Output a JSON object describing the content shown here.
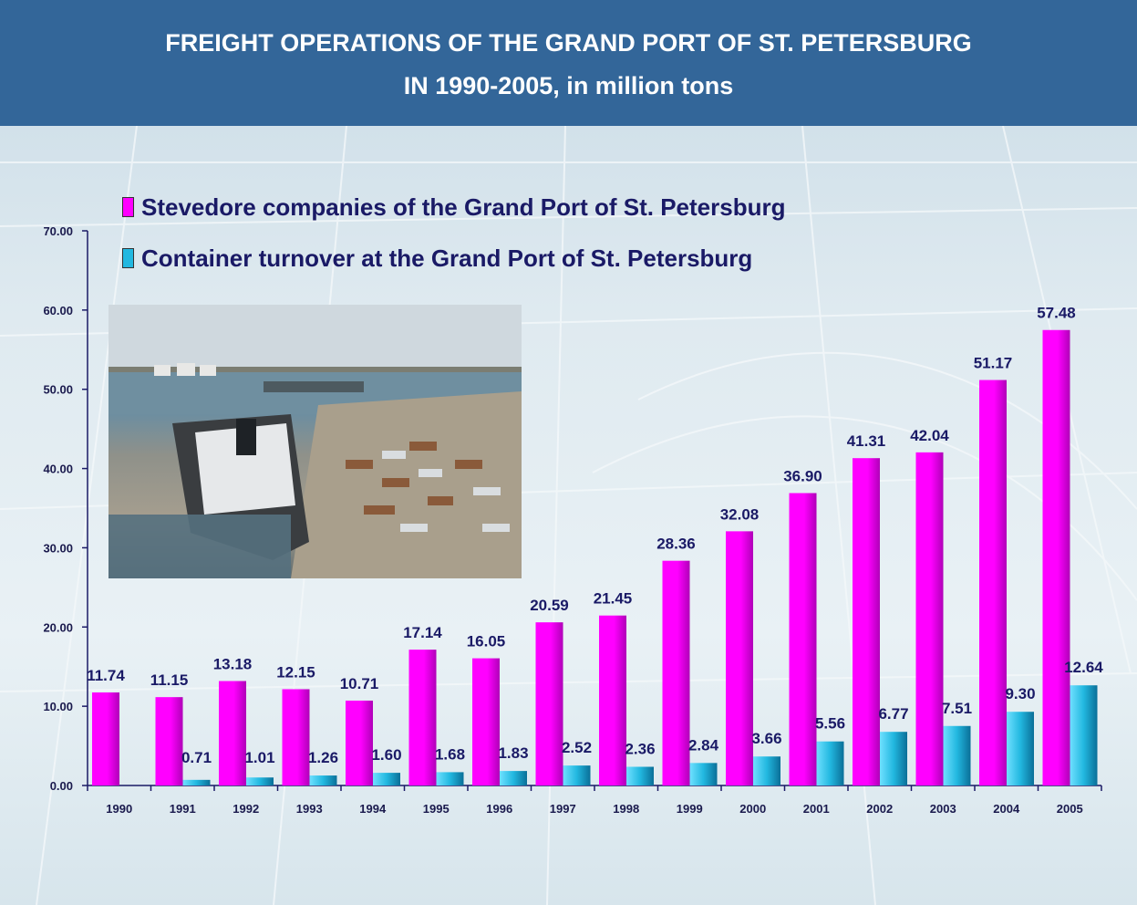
{
  "header": {
    "title_line1": "FREIGHT OPERATIONS OF THE GRAND PORT OF ST. PETERSBURG",
    "title_line2": "IN 1990-2005, in million tons"
  },
  "colors": {
    "header_bg": "#336699",
    "series1": "#ff00ff",
    "series2": "#22b8e0"
  },
  "chart_data": {
    "type": "bar",
    "title": "FREIGHT OPERATIONS OF THE GRAND PORT OF ST. PETERSBURG IN 1990-2005, in million tons",
    "categories": [
      "1990",
      "1991",
      "1992",
      "1993",
      "1994",
      "1995",
      "1996",
      "1997",
      "1998",
      "1999",
      "2000",
      "2001",
      "2002",
      "2003",
      "2004",
      "2005"
    ],
    "series": [
      {
        "name": "Stevedore companies of the Grand Port of St. Petersburg",
        "values": [
          11.74,
          11.15,
          13.18,
          12.15,
          10.71,
          17.14,
          16.05,
          20.59,
          21.45,
          28.36,
          32.08,
          36.9,
          41.31,
          42.04,
          51.17,
          57.48
        ],
        "labels": [
          "11.74",
          "11.15",
          "13.18",
          "12.15",
          "10.71",
          "17.14",
          "16.05",
          "20.59",
          "21.45",
          "28.36",
          "32.08",
          "36.90",
          "41.31",
          "42.04",
          "51.17",
          "57.48"
        ]
      },
      {
        "name": "Container turnover at the Grand Port of St. Petersburg",
        "values": [
          null,
          0.71,
          1.01,
          1.26,
          1.6,
          1.68,
          1.83,
          2.52,
          2.36,
          2.84,
          3.66,
          5.56,
          6.77,
          7.51,
          9.3,
          12.64
        ],
        "labels": [
          "",
          "0.71",
          "1.01",
          "1.26",
          "1.60",
          "1.68",
          "1.83",
          "2.52",
          "2.36",
          "2.84",
          "3.66",
          "5.56",
          "6.77",
          "7.51",
          "9.30",
          "12.64"
        ]
      }
    ],
    "y_ticks": [
      "0.00",
      "10.00",
      "20.00",
      "30.00",
      "40.00",
      "50.00",
      "60.00",
      "70.00"
    ],
    "ylim": [
      0,
      70
    ],
    "grid": false,
    "legend_position": "top-left"
  }
}
